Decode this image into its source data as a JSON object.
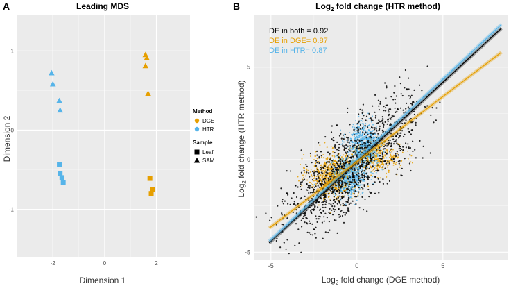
{
  "colors": {
    "dge": "#E69F00",
    "htr": "#56B4E9",
    "both": "#000000",
    "panel_bg": "#EBEBEB",
    "grid": "#FFFFFF"
  },
  "chart_data": [
    {
      "panel_letter": "A",
      "type": "scatter",
      "title": "Leading MDS",
      "xlabel": "Dimension 1",
      "ylabel": "Dimension 2",
      "xlim": [
        -3.4,
        3.3
      ],
      "ylim": [
        -1.6,
        1.45
      ],
      "xticks": [
        -2,
        0,
        2
      ],
      "xtick_labels": [
        "-2",
        "0",
        "2"
      ],
      "yticks": [
        -1,
        0,
        1
      ],
      "ytick_labels": [
        "-1",
        "0",
        "1"
      ],
      "legend": {
        "position": "right",
        "method_title": "Method",
        "method_items": [
          "DGE",
          "HTR"
        ],
        "sample_title": "Sample",
        "sample_items": [
          "Leaf",
          "SAM"
        ]
      },
      "series": [
        {
          "name": "HTR SAM",
          "method": "HTR",
          "sample": "SAM",
          "x": [
            -2.05,
            -2.0,
            -1.75,
            -1.72
          ],
          "y": [
            0.72,
            0.58,
            0.37,
            0.25
          ]
        },
        {
          "name": "HTR Leaf",
          "method": "HTR",
          "sample": "Leaf",
          "x": [
            -1.75,
            -1.72,
            -1.65,
            -1.6
          ],
          "y": [
            -0.43,
            -0.55,
            -0.6,
            -0.66
          ]
        },
        {
          "name": "DGE SAM",
          "method": "DGE",
          "sample": "SAM",
          "x": [
            1.58,
            1.63,
            1.58,
            1.68
          ],
          "y": [
            0.95,
            0.91,
            0.81,
            0.46
          ]
        },
        {
          "name": "DGE Leaf",
          "method": "DGE",
          "sample": "Leaf",
          "x": [
            1.75,
            1.85,
            1.8
          ],
          "y": [
            -0.61,
            -0.75,
            -0.8
          ]
        }
      ]
    },
    {
      "panel_letter": "B",
      "type": "scatter",
      "title_main": "Log",
      "title_sub": "2",
      "title_rest": " fold change (HTR method)",
      "xlabel_main": "Log",
      "xlabel_sub": "2",
      "xlabel_rest": " fold change (DGE method)",
      "ylabel_main": "Log",
      "ylabel_sub": "2",
      "ylabel_rest": " fold change (HTR method)",
      "xlim": [
        -6.0,
        8.8
      ],
      "ylim": [
        -5.4,
        7.8
      ],
      "xticks": [
        -5,
        0,
        5
      ],
      "xtick_labels": [
        "-5",
        "0",
        "5"
      ],
      "yticks": [
        -5,
        0,
        5
      ],
      "ytick_labels": [
        "-5",
        "0",
        "5"
      ],
      "annotations": [
        {
          "text": "DE in both = 0.92",
          "group": "both"
        },
        {
          "text": "DE in DGE= 0.87",
          "group": "dge"
        },
        {
          "text": "DE in HTR= 0.87",
          "group": "htr"
        }
      ],
      "clusters": [
        {
          "group": "dge",
          "name": "DGE neg",
          "cx": -1.4,
          "cy": -0.9,
          "sx": 0.7,
          "sy": 0.6,
          "n": 700
        },
        {
          "group": "dge",
          "name": "DGE pos",
          "cx": 0.9,
          "cy": 0.1,
          "sx": 0.8,
          "sy": 0.4,
          "n": 400
        },
        {
          "group": "htr",
          "name": "HTR neg",
          "cx": -0.4,
          "cy": -0.9,
          "sx": 0.5,
          "sy": 0.5,
          "n": 600
        },
        {
          "group": "htr",
          "name": "HTR pos",
          "cx": 0.4,
          "cy": 0.8,
          "sx": 0.5,
          "sy": 0.6,
          "n": 600
        },
        {
          "group": "both",
          "name": "Both neg",
          "cx": -1.4,
          "cy": -1.3,
          "sx": 1.4,
          "sy": 1.1,
          "n": 700
        },
        {
          "group": "both",
          "name": "Both pos",
          "cx": 1.3,
          "cy": 1.1,
          "sx": 1.4,
          "sy": 1.1,
          "n": 500
        }
      ],
      "regression_lines": [
        {
          "group": "both",
          "x": [
            -5.1,
            8.4
          ],
          "y": [
            -4.5,
            7.1
          ]
        },
        {
          "group": "htr",
          "x": [
            -5.1,
            8.4
          ],
          "y": [
            -4.4,
            7.3
          ]
        },
        {
          "group": "dge",
          "x": [
            -5.1,
            8.4
          ],
          "y": [
            -3.7,
            5.8
          ]
        }
      ]
    }
  ]
}
